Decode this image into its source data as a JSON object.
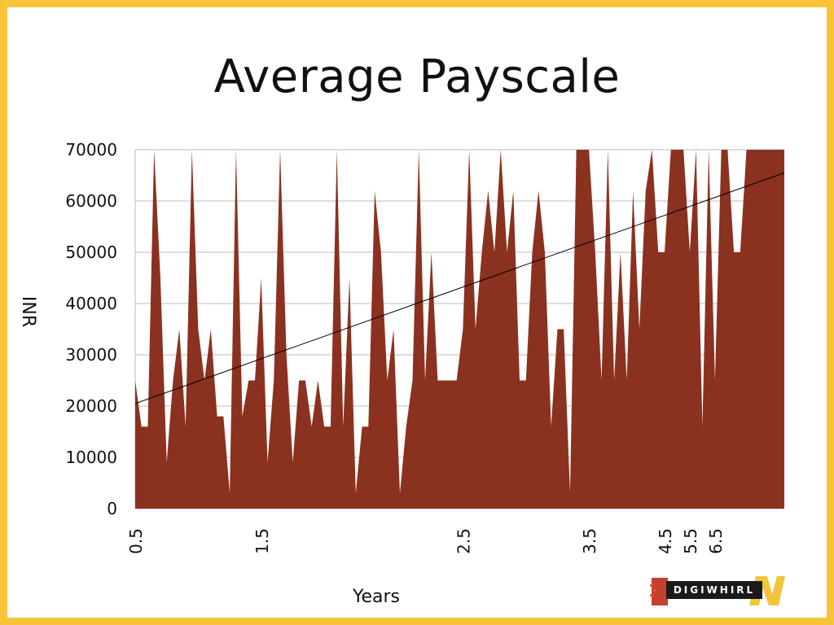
{
  "slide": {
    "title": "Average Payscale",
    "logo_text": "DIGIWHIRL"
  },
  "colors": {
    "border": "#f7c438",
    "area_fill": "#8b3120",
    "trendline": "#000000",
    "grid": "#bbbbbb"
  },
  "chart_data": {
    "type": "area",
    "title": "Average Payscale",
    "xlabel": "Years",
    "ylabel": "INR",
    "ylim": [
      0,
      70000
    ],
    "yticks": [
      0,
      10000,
      20000,
      30000,
      40000,
      50000,
      60000,
      70000
    ],
    "xtick_labels": [
      {
        "label": "0.5",
        "index": 0
      },
      {
        "label": "1.5",
        "index": 20
      },
      {
        "label": "2.5",
        "index": 52
      },
      {
        "label": "3.5",
        "index": 72
      },
      {
        "label": "4.5",
        "index": 84
      },
      {
        "label": "5.5",
        "index": 88
      },
      {
        "label": "6.5",
        "index": 92
      }
    ],
    "grid": true,
    "trendline": {
      "start": 20500,
      "end": 65500
    },
    "values": [
      25000,
      16000,
      16000,
      70000,
      45000,
      9000,
      25000,
      35000,
      16000,
      70000,
      35000,
      25000,
      35000,
      18000,
      18000,
      3000,
      70000,
      18000,
      25000,
      25000,
      45000,
      9000,
      25000,
      70000,
      30000,
      9000,
      25000,
      25000,
      16000,
      25000,
      16000,
      16000,
      70000,
      16000,
      45000,
      3000,
      16000,
      16000,
      62000,
      50000,
      25000,
      35000,
      3000,
      16000,
      25000,
      70000,
      25000,
      50000,
      25000,
      25000,
      25000,
      25000,
      35000,
      70000,
      35000,
      50000,
      62000,
      50000,
      70000,
      50000,
      62000,
      25000,
      25000,
      50000,
      62000,
      50000,
      16000,
      35000,
      35000,
      3000,
      70000,
      70000,
      70000,
      50000,
      25000,
      70000,
      25000,
      50000,
      25000,
      62000,
      35000,
      62000,
      70000,
      50000,
      50000,
      70000,
      70000,
      70000,
      50000,
      70000,
      16000,
      70000,
      25000,
      70000,
      70000,
      50000,
      50000,
      70000,
      70000,
      70000,
      70000,
      70000,
      70000,
      70000
    ]
  }
}
